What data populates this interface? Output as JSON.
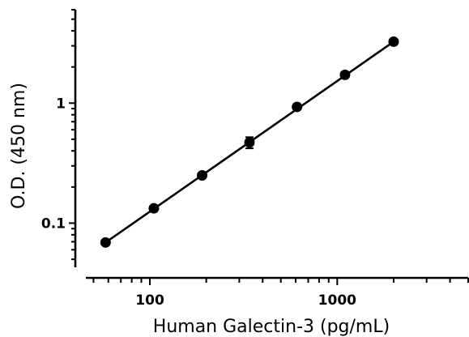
{
  "chart_data": {
    "type": "scatter",
    "title": "",
    "xlabel": "Human Galectin-3 (pg/mL)",
    "ylabel": "O.D. (450 nm)",
    "x_scale": "log",
    "y_scale": "log",
    "xlim": [
      40,
      5000
    ],
    "ylim": [
      0.035,
      6
    ],
    "x_tick_labels": [
      "100",
      "1000"
    ],
    "x_tick_values": [
      100,
      1000
    ],
    "y_tick_labels": [
      "0.1",
      "1"
    ],
    "y_tick_values": [
      0.1,
      1
    ],
    "grid": false,
    "legend": "none",
    "series": [
      {
        "x": [
          58,
          105,
          190,
          340,
          610,
          1100,
          2000
        ],
        "y": [
          0.069,
          0.133,
          0.25,
          0.47,
          0.93,
          1.72,
          3.25
        ],
        "y_error": [
          0,
          0,
          0,
          0.05,
          0,
          0,
          0
        ]
      }
    ],
    "fit_line": {
      "x": [
        58,
        2000
      ],
      "y": [
        0.069,
        3.25
      ]
    },
    "color": "#000000"
  }
}
